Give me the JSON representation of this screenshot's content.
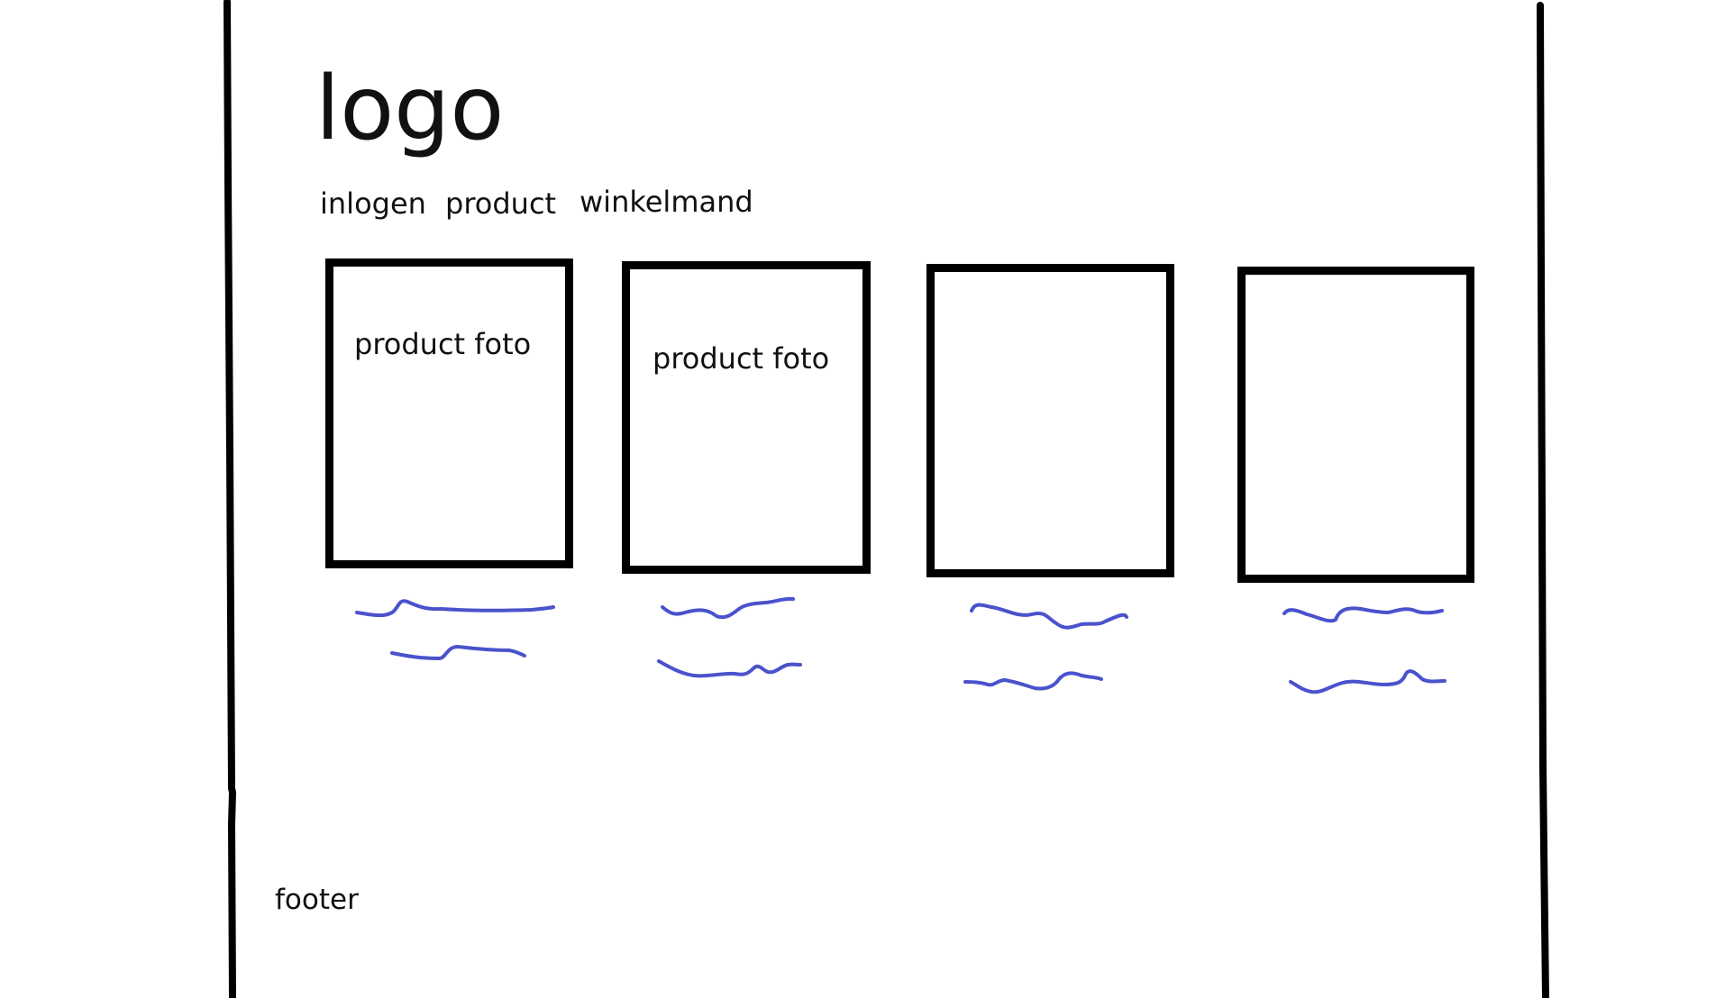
{
  "header": {
    "logo": "logo",
    "nav": [
      "inlogen",
      "product",
      "winkelmand"
    ]
  },
  "products": [
    {
      "photo_label": "product foto"
    },
    {
      "photo_label": "product foto"
    },
    {
      "photo_label": ""
    },
    {
      "photo_label": ""
    }
  ],
  "footer": {
    "label": "footer"
  },
  "colors": {
    "ink": "#000000",
    "scribble": "#4a52cc"
  }
}
